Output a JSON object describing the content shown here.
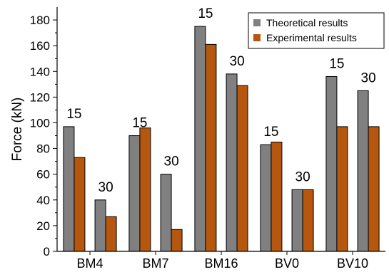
{
  "chart_data": {
    "type": "bar",
    "ylabel": "Force (kN)",
    "xlabel": "",
    "ylim": [
      0,
      190
    ],
    "yticks": [
      0,
      20,
      40,
      60,
      80,
      100,
      120,
      140,
      160,
      180
    ],
    "grid": false,
    "legend_position": "top-right",
    "groups": [
      {
        "label": "BM4",
        "pairs": [
          {
            "annotation": "15",
            "theoretical": 97,
            "experimental": 73
          },
          {
            "annotation": "30",
            "theoretical": 40,
            "experimental": 27
          }
        ]
      },
      {
        "label": "BM7",
        "pairs": [
          {
            "annotation": "15",
            "theoretical": 90,
            "experimental": 96
          },
          {
            "annotation": "30",
            "theoretical": 60,
            "experimental": 17
          }
        ]
      },
      {
        "label": "BM16",
        "pairs": [
          {
            "annotation": "15",
            "theoretical": 175,
            "experimental": 161
          },
          {
            "annotation": "30",
            "theoretical": 138,
            "experimental": 129
          }
        ]
      },
      {
        "label": "BV0",
        "pairs": [
          {
            "annotation": "15",
            "theoretical": 83,
            "experimental": 85
          },
          {
            "annotation": "30",
            "theoretical": 48,
            "experimental": 48
          }
        ]
      },
      {
        "label": "BV10",
        "pairs": [
          {
            "annotation": "15",
            "theoretical": 136,
            "experimental": 97
          },
          {
            "annotation": "30",
            "theoretical": 125,
            "experimental": 97
          }
        ]
      }
    ],
    "series": [
      {
        "name": "Theoretical results",
        "key": "theoretical",
        "color": "#808080"
      },
      {
        "name": "Experimental results",
        "key": "experimental",
        "color": "#b5570f"
      }
    ]
  }
}
